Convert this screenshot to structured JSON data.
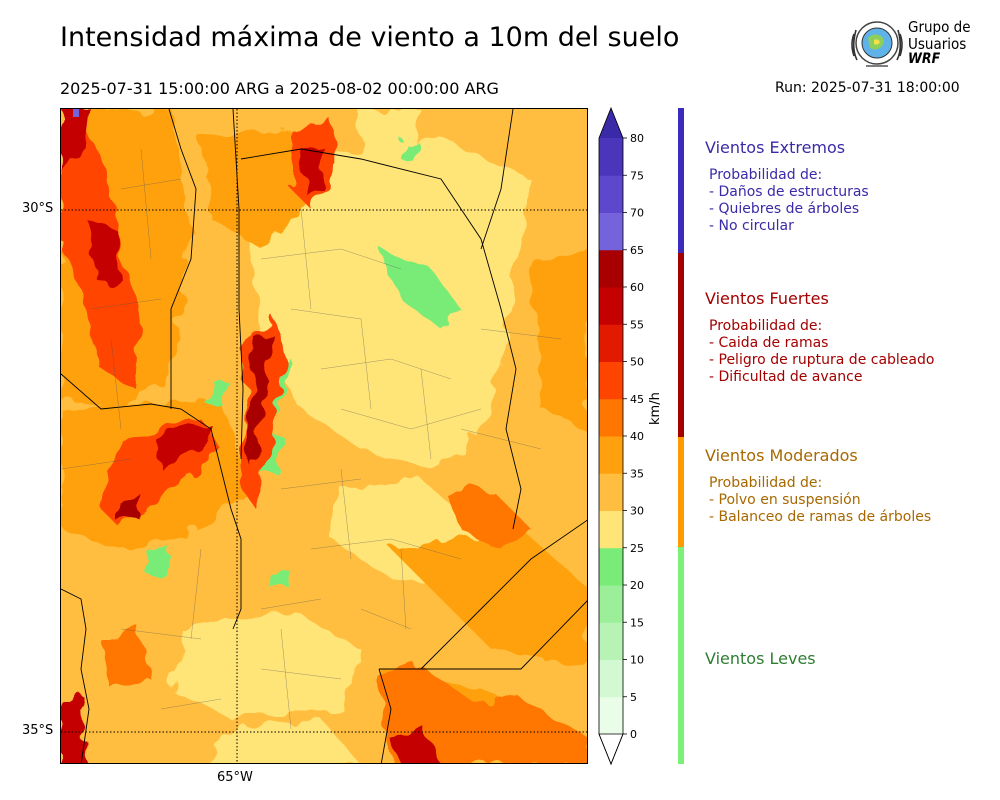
{
  "header": {
    "title": "Intensidad máxima de viento a 10m del suelo",
    "period": "2025-07-31 15:00:00 ARG  a  2025-08-02 00:00:00 ARG",
    "run": "Run: 2025-07-31 18:00:00"
  },
  "logo": {
    "line1": "Grupo de",
    "line2": "Usuarios",
    "line3": "WRF"
  },
  "map": {
    "lat_labels": [
      "30°S",
      "35°S"
    ],
    "lon_labels": [
      "65°W"
    ]
  },
  "colorbar": {
    "units": "km/h",
    "ticks": [
      "0",
      "5",
      "10",
      "15",
      "20",
      "25",
      "30",
      "35",
      "40",
      "45",
      "50",
      "55",
      "60",
      "65",
      "70",
      "75",
      "80"
    ],
    "colors": [
      "#e9fde9",
      "#d2f9d1",
      "#b8f3b6",
      "#9aef98",
      "#79ec77",
      "#ffe477",
      "#ffbe3f",
      "#ffa10e",
      "#ff7700",
      "#ff4400",
      "#e21a00",
      "#c40000",
      "#a80000",
      "#7563dc",
      "#5c47cd",
      "#4a35bb",
      "#3a2aa7"
    ]
  },
  "categories": [
    {
      "name": "Vientos Extremos",
      "color": "#3a2aa7",
      "intro": "Probabilidad de:",
      "items": [
        "- Daños de estructuras",
        "- Quiebres de árboles",
        "- No circular"
      ]
    },
    {
      "name": "Vientos Fuertes",
      "color": "#a30000",
      "intro": "Probabilidad de:",
      "items": [
        "- Caida de ramas",
        "- Peligro de ruptura de cableado",
        "- Dificultad de avance"
      ]
    },
    {
      "name": "Vientos Moderados",
      "color": "#a86800",
      "intro": "Probabilidad de:",
      "items": [
        "- Polvo en suspensión",
        "- Balanceo de ramas de árboles"
      ]
    },
    {
      "name": "Vientos Leves",
      "color": "#2e7d32",
      "intro": "",
      "items": []
    }
  ],
  "category_bar_colors": [
    "#3b2bbd",
    "#a50000",
    "#ff9b00",
    "#7df07a"
  ]
}
